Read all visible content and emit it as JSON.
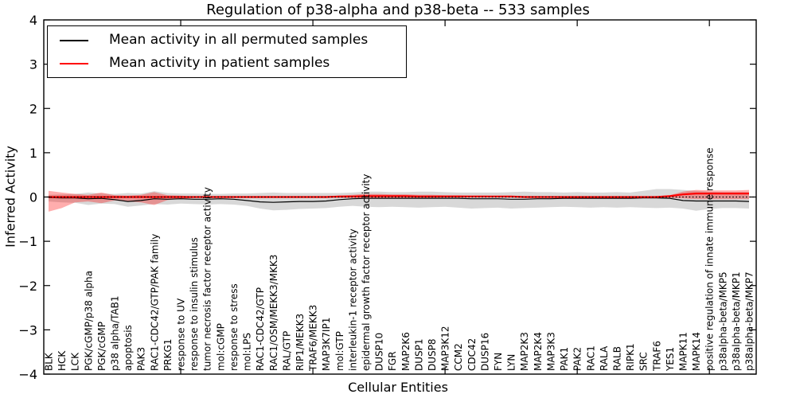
{
  "chart_data": {
    "type": "line",
    "title": "Regulation of p38-alpha and p38-beta -- 533 samples",
    "xlabel": "Cellular Entities",
    "ylabel": "Inferred Activity",
    "ylim": [
      -4,
      4
    ],
    "yticks": [
      -4,
      -3,
      -2,
      -1,
      0,
      1,
      2,
      3,
      4
    ],
    "xticks_major_index": [
      10,
      20,
      30,
      40,
      50
    ],
    "grid": false,
    "legend_position": "upper left",
    "zero_reference_line": {
      "value": 0,
      "style": "dotted",
      "color": "#000000"
    },
    "categories": [
      "BLK",
      "HCK",
      "LCK",
      "PGK/cGMP/p38 alpha",
      "PGK/cGMP",
      "p38 alpha/TAB1",
      "apoptosis",
      "PAK3",
      "RAC1-CDC42/GTP/PAK family",
      "PRKG1",
      "response to UV",
      "response to insulin stimulus",
      "tumor necrosis factor receptor activity",
      "mol:cGMP",
      "response to stress",
      "mol:LPS",
      "RAC1-CDC42/GTP",
      "RAC1/OSM/MEKK3/MKK3",
      "RAL/GTP",
      "RIP1/MEKK3",
      "TRAF6/MEKK3",
      "MAP3K7IP1",
      "mol:GTP",
      "interleukin-1 receptor activity",
      "epidermal growth factor receptor activity",
      "DUSP10",
      "FGR",
      "MAP2K6",
      "DUSP1",
      "DUSP8",
      "MAP3K12",
      "CCM2",
      "CDC42",
      "DUSP16",
      "FYN",
      "LYN",
      "MAP2K3",
      "MAP2K4",
      "MAP3K3",
      "PAK1",
      "PAK2",
      "RAC1",
      "RALA",
      "RALB",
      "RIPK1",
      "SRC",
      "TRAF6",
      "YES1",
      "MAPK11",
      "MAPK14",
      "positive regulation of innate immune response",
      "p38alpha-beta/MKP5",
      "p38alpha-beta/MKP1",
      "p38alpha-beta/MKP7"
    ],
    "series": [
      {
        "name": "Mean activity in all permuted samples",
        "color": "#000000",
        "values": [
          -0.01,
          -0.02,
          -0.02,
          -0.04,
          -0.03,
          -0.06,
          -0.1,
          -0.08,
          -0.04,
          -0.05,
          -0.04,
          -0.05,
          -0.05,
          -0.04,
          -0.05,
          -0.08,
          -0.11,
          -0.12,
          -0.11,
          -0.1,
          -0.1,
          -0.09,
          -0.06,
          -0.04,
          -0.03,
          -0.03,
          -0.03,
          -0.03,
          -0.03,
          -0.03,
          -0.03,
          -0.03,
          -0.04,
          -0.04,
          -0.04,
          -0.05,
          -0.05,
          -0.04,
          -0.04,
          -0.03,
          -0.03,
          -0.03,
          -0.03,
          -0.03,
          -0.03,
          -0.02,
          -0.02,
          -0.03,
          -0.08,
          -0.09,
          -0.09,
          -0.09,
          -0.09,
          -0.1
        ]
      },
      {
        "name": "Mean activity in patient samples",
        "color": "#ff0000",
        "values": [
          0.0,
          0.0,
          0.0,
          0.0,
          0.0,
          0.0,
          0.0,
          0.0,
          0.0,
          0.0,
          0.0,
          0.0,
          0.0,
          0.0,
          0.0,
          0.0,
          0.0,
          0.0,
          0.0,
          0.0,
          0.0,
          0.0,
          0.01,
          0.01,
          0.02,
          0.02,
          0.02,
          0.02,
          0.01,
          0.01,
          0.01,
          0.01,
          0.01,
          0.01,
          0.01,
          0.01,
          0.0,
          0.0,
          0.0,
          0.0,
          0.0,
          0.0,
          0.0,
          0.0,
          0.0,
          0.0,
          0.0,
          0.02,
          0.06,
          0.08,
          0.08,
          0.08,
          0.08,
          0.08
        ]
      }
    ],
    "bands": [
      {
        "name": "permuted samples activity range",
        "color": "#a8a8a8",
        "opacity": 0.45,
        "upper": [
          0.05,
          0.06,
          0.07,
          0.1,
          0.08,
          0.07,
          0.09,
          0.08,
          0.13,
          0.09,
          0.08,
          0.08,
          0.07,
          0.07,
          0.08,
          0.08,
          0.09,
          0.1,
          0.09,
          0.09,
          0.09,
          0.09,
          0.09,
          0.1,
          0.12,
          0.12,
          0.11,
          0.11,
          0.12,
          0.12,
          0.11,
          0.1,
          0.1,
          0.1,
          0.1,
          0.11,
          0.12,
          0.11,
          0.11,
          0.1,
          0.11,
          0.1,
          0.1,
          0.11,
          0.1,
          0.14,
          0.18,
          0.18,
          0.16,
          0.14,
          0.12,
          0.11,
          0.11,
          0.11
        ],
        "lower": [
          -0.1,
          -0.12,
          -0.13,
          -0.18,
          -0.15,
          -0.16,
          -0.22,
          -0.19,
          -0.16,
          -0.17,
          -0.15,
          -0.16,
          -0.17,
          -0.16,
          -0.17,
          -0.2,
          -0.26,
          -0.3,
          -0.29,
          -0.27,
          -0.26,
          -0.25,
          -0.22,
          -0.2,
          -0.22,
          -0.23,
          -0.22,
          -0.23,
          -0.24,
          -0.23,
          -0.22,
          -0.24,
          -0.26,
          -0.25,
          -0.24,
          -0.26,
          -0.25,
          -0.24,
          -0.23,
          -0.22,
          -0.23,
          -0.24,
          -0.23,
          -0.24,
          -0.23,
          -0.24,
          -0.25,
          -0.24,
          -0.26,
          -0.31,
          -0.27,
          -0.25,
          -0.25,
          -0.26
        ]
      },
      {
        "name": "patient samples activity range",
        "color": "#ff0000",
        "opacity": 0.32,
        "upper": [
          0.14,
          0.1,
          0.07,
          0.05,
          0.1,
          0.04,
          0.03,
          0.05,
          0.11,
          0.04,
          0.03,
          0.01,
          0.01,
          0.01,
          0.01,
          0.01,
          0.01,
          0.01,
          0.01,
          0.01,
          0.01,
          0.01,
          0.03,
          0.05,
          0.07,
          0.07,
          0.06,
          0.06,
          0.05,
          0.05,
          0.04,
          0.04,
          0.03,
          0.03,
          0.02,
          0.02,
          0.02,
          0.02,
          0.01,
          0.01,
          0.01,
          0.01,
          0.01,
          0.01,
          0.01,
          0.01,
          0.02,
          0.04,
          0.12,
          0.16,
          0.15,
          0.15,
          0.15,
          0.16
        ],
        "lower": [
          -0.33,
          -0.25,
          -0.12,
          -0.1,
          -0.14,
          -0.08,
          -0.1,
          -0.12,
          -0.18,
          -0.07,
          -0.04,
          -0.02,
          -0.01,
          -0.01,
          -0.01,
          -0.01,
          -0.01,
          -0.01,
          -0.01,
          -0.01,
          -0.01,
          -0.01,
          -0.02,
          -0.02,
          -0.03,
          -0.03,
          -0.02,
          -0.02,
          -0.02,
          -0.02,
          -0.01,
          -0.01,
          -0.01,
          -0.01,
          -0.01,
          -0.01,
          -0.01,
          -0.01,
          -0.01,
          -0.01,
          -0.01,
          -0.01,
          -0.01,
          -0.01,
          -0.01,
          -0.01,
          -0.01,
          -0.02,
          -0.03,
          -0.05,
          -0.05,
          -0.05,
          -0.05,
          -0.05
        ]
      }
    ]
  },
  "legend": {
    "items": [
      {
        "label": "Mean activity in all permuted samples",
        "color": "#000000"
      },
      {
        "label": "Mean activity in patient samples",
        "color": "#ff0000"
      }
    ]
  }
}
